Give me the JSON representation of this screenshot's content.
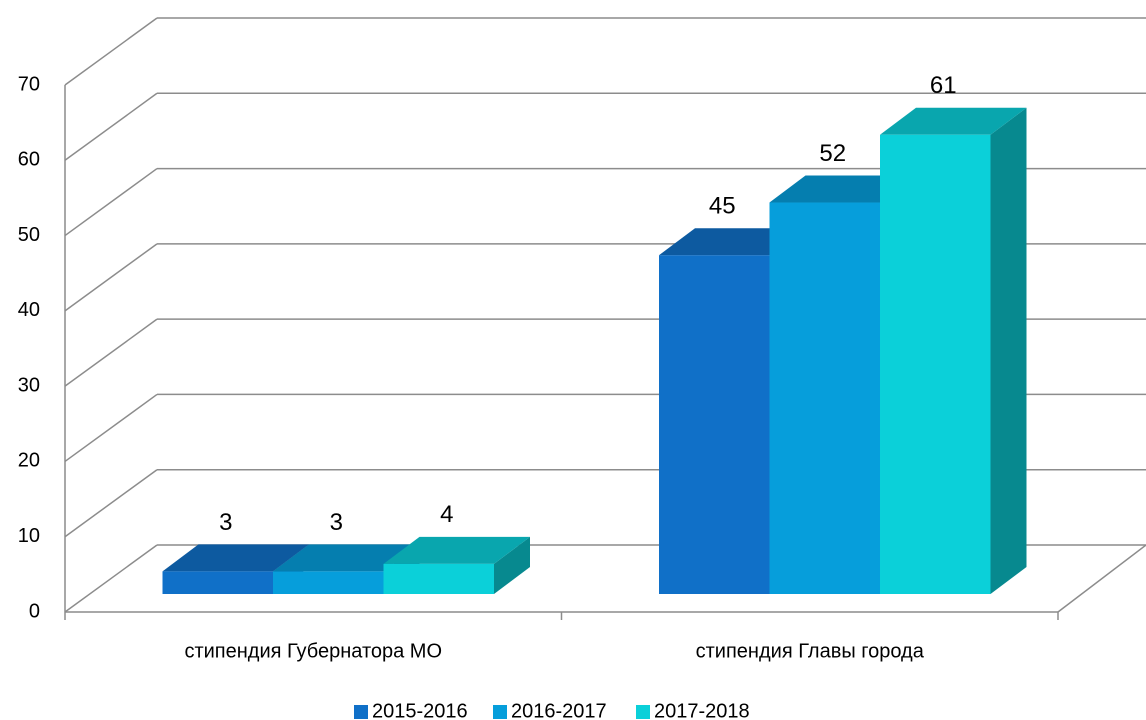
{
  "chart_data": {
    "type": "bar3d",
    "categories": [
      "стипендия Губернатора МО",
      "стипендия Главы города"
    ],
    "series": [
      {
        "name": "2015-2016",
        "color": "#1070c8",
        "values": [
          3,
          45
        ]
      },
      {
        "name": "2016-2017",
        "color": "#069edb",
        "values": [
          3,
          52
        ]
      },
      {
        "name": "2017-2018",
        "color": "#0bd0d9",
        "values": [
          4,
          61
        ]
      }
    ],
    "ylim": [
      0,
      70
    ],
    "yticks": [
      0,
      10,
      20,
      30,
      40,
      50,
      60,
      70
    ],
    "grid": true,
    "legend": "bottom"
  }
}
